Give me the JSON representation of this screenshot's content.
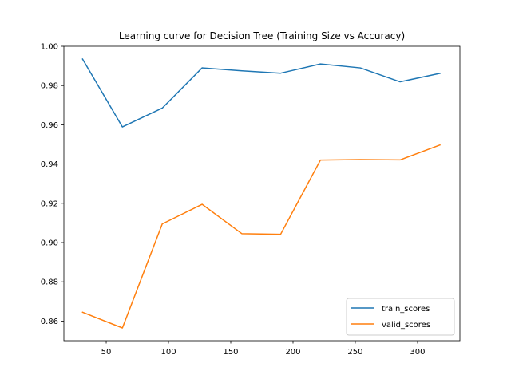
{
  "chart_data": {
    "type": "line",
    "title": "Learning curve for Decision Tree (Training Size vs Accuracy)",
    "xlabel": "",
    "ylabel": "",
    "xlim": [
      16,
      334
    ],
    "ylim": [
      0.85,
      1.0
    ],
    "xticks": [
      50,
      100,
      150,
      200,
      250,
      300
    ],
    "yticks": [
      0.86,
      0.88,
      0.9,
      0.92,
      0.94,
      0.96,
      0.98,
      1.0
    ],
    "xtick_labels": [
      "50",
      "100",
      "150",
      "200",
      "250",
      "300"
    ],
    "ytick_labels": [
      "0.86",
      "0.88",
      "0.90",
      "0.92",
      "0.94",
      "0.96",
      "0.98",
      "1.00"
    ],
    "grid": false,
    "legend_position": "lower-right",
    "x": [
      31,
      63,
      95,
      127,
      159,
      190,
      222,
      254,
      286,
      318
    ],
    "series": [
      {
        "name": "train_scores",
        "color": "#1f77b4",
        "values": [
          0.9935,
          0.9589,
          0.9685,
          0.989,
          0.9875,
          0.9863,
          0.991,
          0.989,
          0.9819,
          0.9862
        ]
      },
      {
        "name": "valid_scores",
        "color": "#ff7f0e",
        "values": [
          0.8645,
          0.8565,
          0.9095,
          0.9195,
          0.9045,
          0.9042,
          0.942,
          0.9423,
          0.9421,
          0.9497
        ]
      }
    ]
  }
}
